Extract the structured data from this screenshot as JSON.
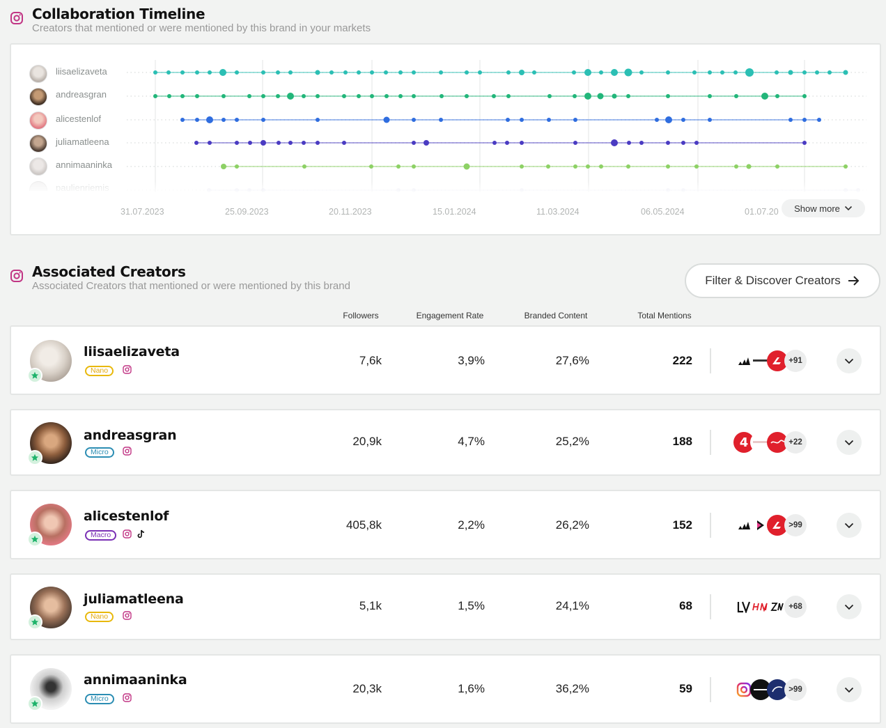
{
  "timeline": {
    "title": "Collaboration Timeline",
    "subtitle": "Creators that mentioned or were mentioned by this brand in your markets",
    "creators": [
      {
        "name": "liisaelizaveta",
        "color": "#2bbfb4"
      },
      {
        "name": "andreasgran",
        "color": "#22b67a"
      },
      {
        "name": "alicestenlof",
        "color": "#2f6ddf"
      },
      {
        "name": "juliamatleena",
        "color": "#4a3bc2"
      },
      {
        "name": "annimaaninka",
        "color": "#8dd165"
      },
      {
        "name": "paulienriemis",
        "color": "#c9cbe6"
      }
    ],
    "dates": [
      "31.07.2023",
      "25.09.2023",
      "20.11.2023",
      "15.01.2024",
      "11.03.2024",
      "06.05.2024",
      "01.07.20"
    ],
    "show_more_label": "Show more"
  },
  "associated": {
    "title": "Associated Creators",
    "subtitle": "Associated Creators that mentioned or were mentioned by this brand",
    "filter_label": "Filter & Discover Creators",
    "columns": {
      "followers": "Followers",
      "engagement": "Engagement Rate",
      "branded": "Branded Content",
      "mentions": "Total Mentions"
    },
    "rows": [
      {
        "name": "liisaelizaveta",
        "tier": "Nano",
        "followers": "7,6k",
        "engagement": "3,9%",
        "branded": "27,6%",
        "mentions": "222",
        "more": "+91"
      },
      {
        "name": "andreasgran",
        "tier": "Micro",
        "followers": "20,9k",
        "engagement": "4,7%",
        "branded": "25,2%",
        "mentions": "188",
        "more": "+22"
      },
      {
        "name": "alicestenlof",
        "tier": "Macro",
        "followers": "405,8k",
        "engagement": "2,2%",
        "branded": "26,2%",
        "mentions": "152",
        "more": ">99"
      },
      {
        "name": "juliamatleena",
        "tier": "Nano",
        "followers": "5,1k",
        "engagement": "1,5%",
        "branded": "24,1%",
        "mentions": "68",
        "more": "+68"
      },
      {
        "name": "annimaaninka",
        "tier": "Micro",
        "followers": "20,3k",
        "engagement": "1,6%",
        "branded": "36,2%",
        "mentions": "59",
        "more": ">99"
      }
    ]
  },
  "colors": {
    "instagram": "#c13584",
    "star": "#1db36a"
  },
  "icons": [
    "instagram-icon",
    "tiktok-icon",
    "chevron-down-icon",
    "arrow-right-icon",
    "star-icon"
  ]
}
